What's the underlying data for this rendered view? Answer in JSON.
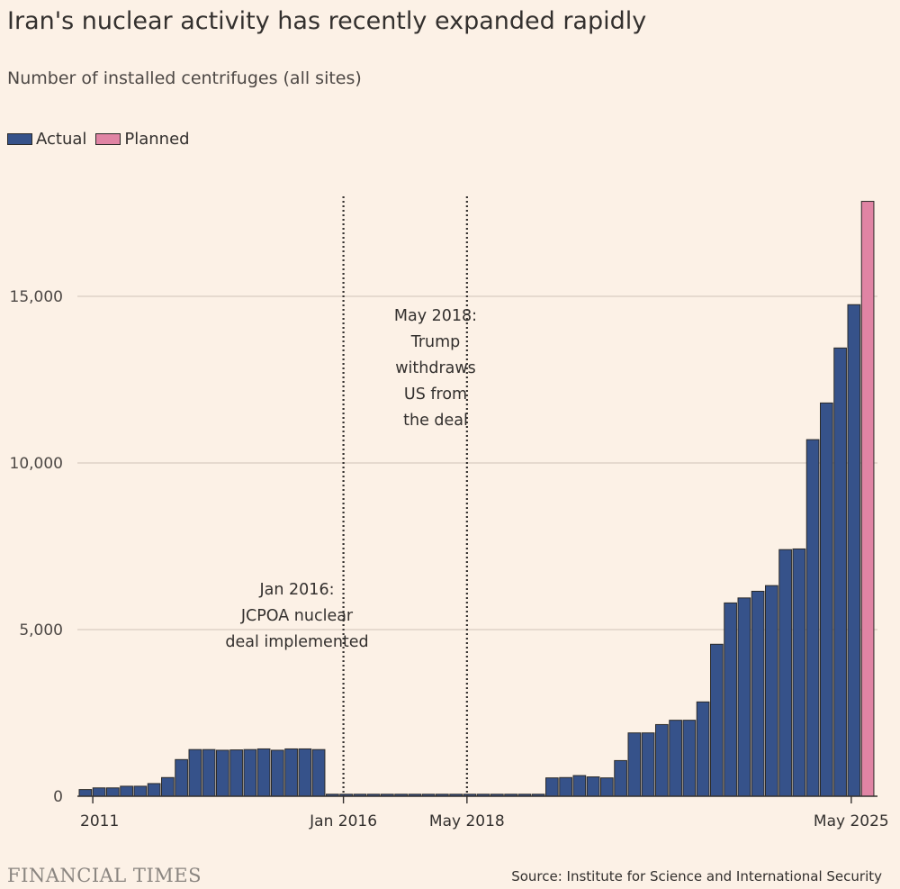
{
  "title": "Iran's nuclear activity has recently expanded rapidly",
  "subtitle": "Number of installed centrifuges (all sites)",
  "legend": {
    "actual": "Actual",
    "planned": "Planned"
  },
  "colors": {
    "actual": "#36528a",
    "planned": "#e084a4",
    "background": "#fcf1e6",
    "grid": "#d9cdc1"
  },
  "footer": {
    "brand": "FINANCIAL TIMES",
    "source": "Source: Institute for Science and International Security"
  },
  "chart_data": {
    "type": "bar",
    "ylim": [
      0,
      18000
    ],
    "y_ticks": [
      {
        "value": 0,
        "label": "0"
      },
      {
        "value": 5000,
        "label": "5,000"
      },
      {
        "value": 10000,
        "label": "10,000"
      },
      {
        "value": 15000,
        "label": "15,000"
      }
    ],
    "x_tick_labels": [
      {
        "index": 1,
        "label": "2011"
      },
      {
        "index": 19,
        "label": "Jan 2016"
      },
      {
        "index": 28,
        "label": "May 2018"
      },
      {
        "index": 56,
        "label": "May 2025"
      }
    ],
    "annotations": [
      {
        "index": 19,
        "lines": [
          "Jan 2016:",
          "JCPOA nuclear",
          "deal implemented"
        ]
      },
      {
        "index": 28,
        "lines": [
          "May 2018:",
          "Trump",
          "withdraws",
          "US from",
          "the deal"
        ]
      }
    ],
    "series": [
      {
        "name": "Actual",
        "values": [
          200,
          250,
          250,
          300,
          300,
          380,
          560,
          1100,
          1400,
          1400,
          1380,
          1390,
          1400,
          1420,
          1380,
          1420,
          1420,
          1400,
          60,
          60,
          60,
          60,
          60,
          60,
          60,
          60,
          60,
          60,
          60,
          60,
          60,
          60,
          60,
          60,
          550,
          560,
          620,
          580,
          550,
          1070,
          1900,
          1900,
          2150,
          2280,
          2280,
          2830,
          4560,
          5800,
          5950,
          6150,
          6320,
          7400,
          7420,
          10700,
          11800,
          13450,
          14750
        ]
      },
      {
        "name": "Planned",
        "values": [
          null,
          null,
          null,
          null,
          null,
          null,
          null,
          null,
          null,
          null,
          null,
          null,
          null,
          null,
          null,
          null,
          null,
          null,
          null,
          null,
          null,
          null,
          null,
          null,
          null,
          null,
          null,
          null,
          null,
          null,
          null,
          null,
          null,
          null,
          null,
          null,
          null,
          null,
          null,
          null,
          null,
          null,
          null,
          null,
          null,
          null,
          null,
          null,
          null,
          null,
          null,
          null,
          null,
          null,
          null,
          null,
          null,
          17850
        ]
      }
    ]
  }
}
